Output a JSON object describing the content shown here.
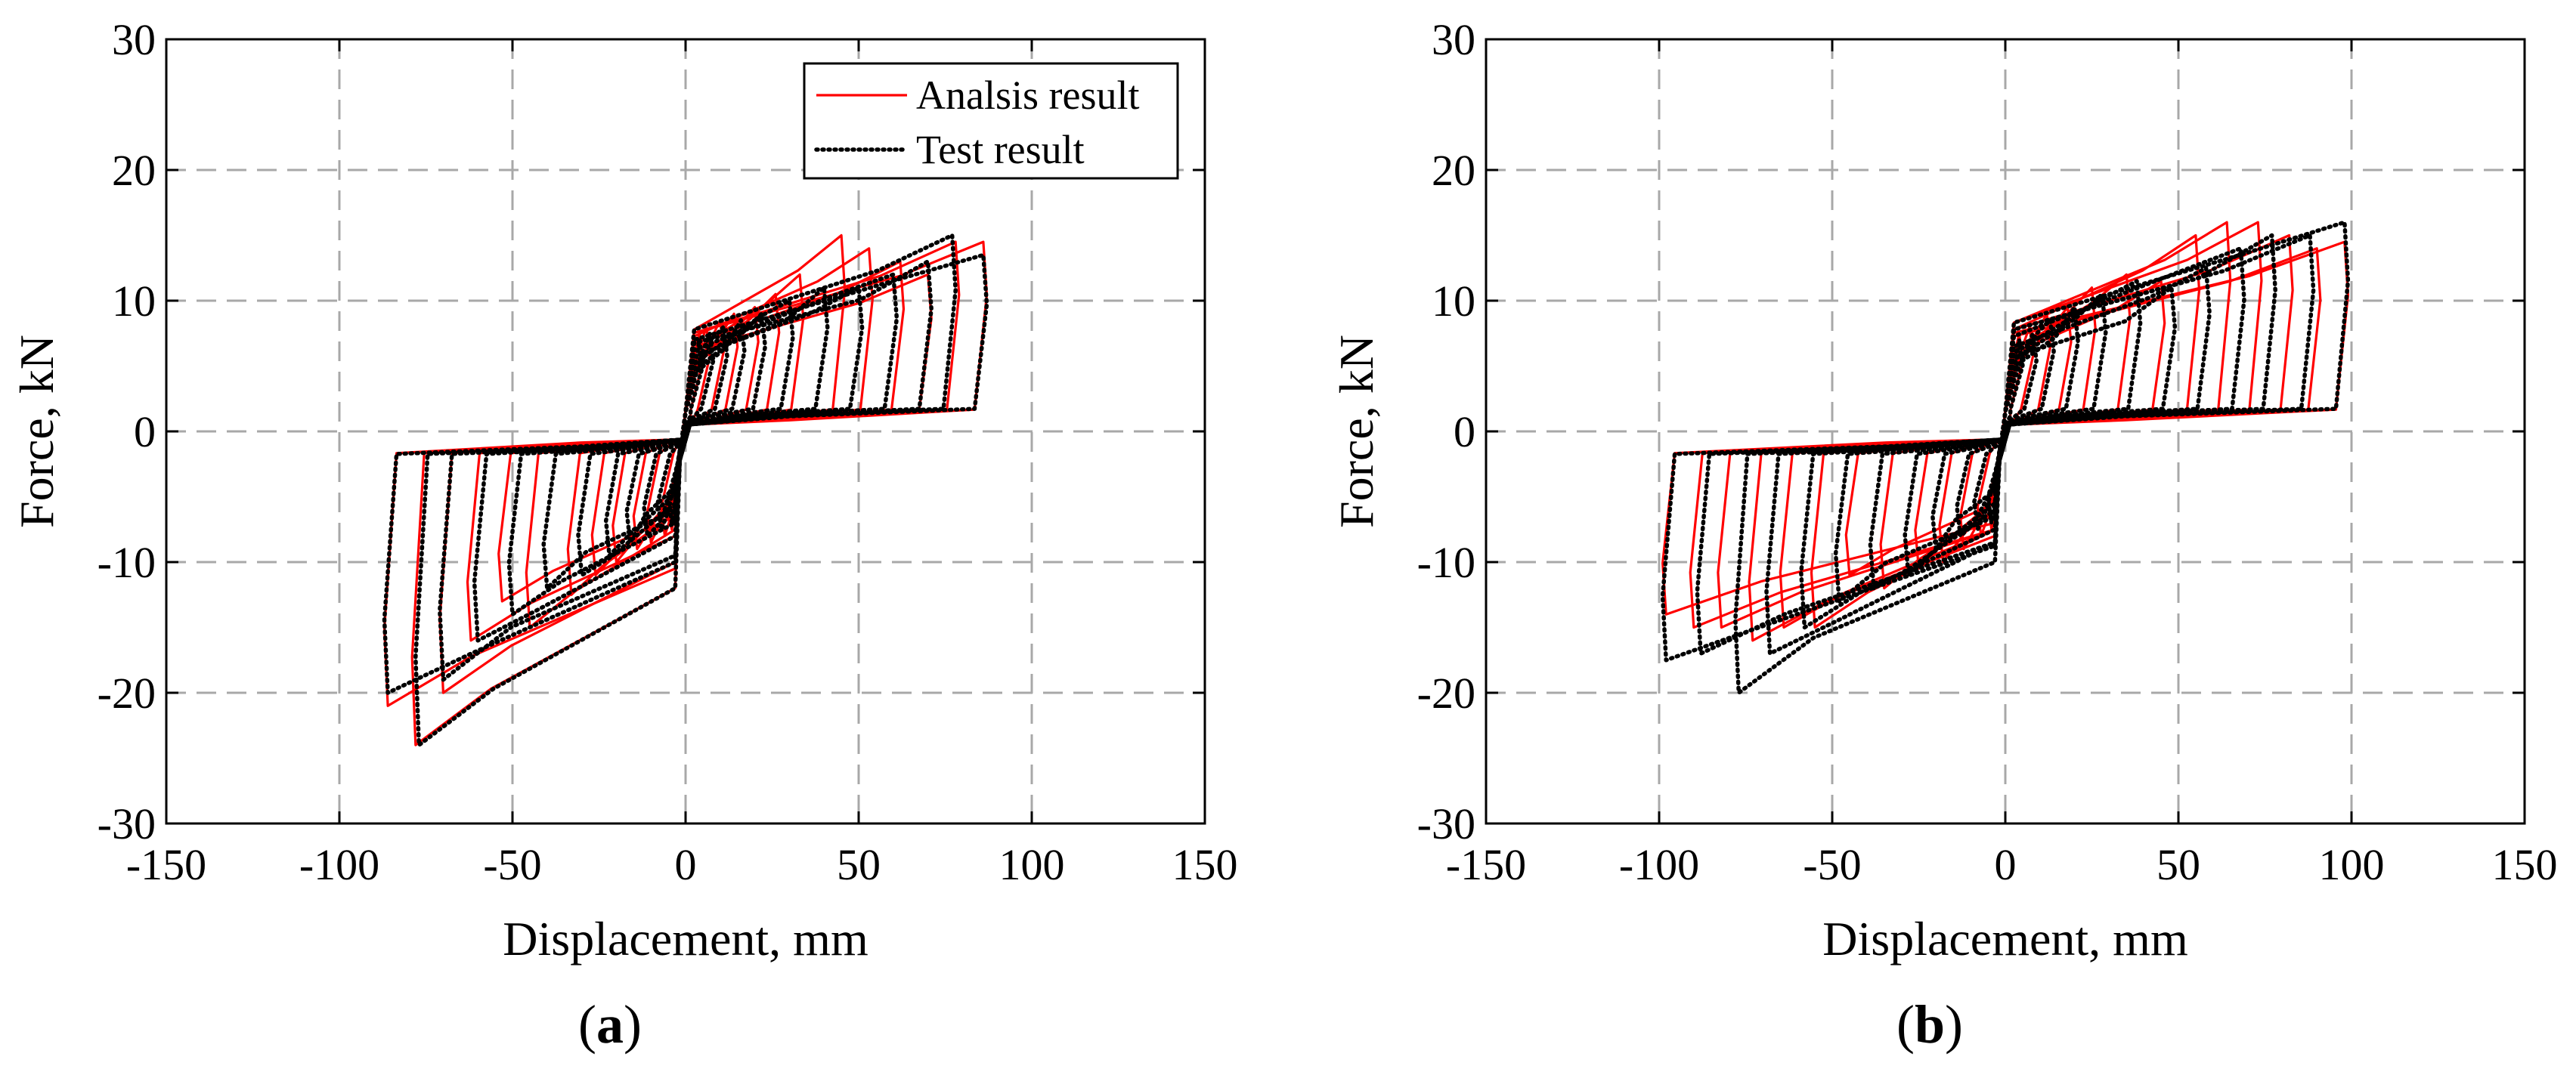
{
  "chart_data": [
    {
      "type": "line",
      "id": "a",
      "title": "",
      "caption": {
        "open": "(",
        "letter": "a",
        "close": ")"
      },
      "xlabel": "Displacement, mm",
      "ylabel": "Force, kN",
      "xlim": [
        -150,
        150
      ],
      "ylim": [
        -30,
        30
      ],
      "xticks": [
        -150,
        -100,
        -50,
        0,
        50,
        100,
        150
      ],
      "yticks": [
        -30,
        -20,
        -10,
        0,
        10,
        20,
        30
      ],
      "grid": true,
      "legend": {
        "position": "top-right",
        "entries": [
          "Analsis result",
          "Test result"
        ]
      },
      "series": [
        {
          "name": "Analsis result",
          "style": "solid",
          "color": "#ff0000",
          "cycles": [
            {
              "amp": 4,
              "posPeak": 7.5,
              "negPeak": -7.5
            },
            {
              "amp": 6,
              "posPeak": 8,
              "negPeak": -8
            },
            {
              "amp": 10,
              "posPeak": 8.5,
              "negPeak": -8.5
            },
            {
              "amp": 14,
              "posPeak": 9,
              "negPeak": -9
            },
            {
              "amp": 20,
              "posPeak": 9.5,
              "negPeak": -10
            },
            {
              "amp": 26,
              "posPeak": 10.5,
              "negPeak": -11
            },
            {
              "amp": 33,
              "posPeak": 12,
              "negPeak": -12.5
            },
            {
              "amp": 45,
              "posPeak": 15,
              "negPeak": -15
            },
            {
              "amp": 53,
              "posPeak": 14,
              "negPeak": -13
            },
            {
              "amp": 62,
              "posPeak": 13,
              "negPeak": -16
            },
            {
              "amp": 70,
              "posPeak": 12,
              "negPeak": -20
            },
            {
              "amp": 78,
              "posPeak": 14.5,
              "negPeak": -24
            },
            {
              "amp": 86,
              "posPeak": 14.5,
              "negPeak": -21
            }
          ]
        },
        {
          "name": "Test result",
          "style": "dotted",
          "color": "#000000",
          "cycles": [
            {
              "amp": 4,
              "posPeak": 7,
              "negPeak": -7
            },
            {
              "amp": 7,
              "posPeak": 7.5,
              "negPeak": -7.5
            },
            {
              "amp": 11,
              "posPeak": 8,
              "negPeak": -8
            },
            {
              "amp": 16,
              "posPeak": 8.5,
              "negPeak": -8.5
            },
            {
              "amp": 22,
              "posPeak": 9,
              "negPeak": -9.5
            },
            {
              "amp": 30,
              "posPeak": 10,
              "negPeak": -11
            },
            {
              "amp": 40,
              "posPeak": 11,
              "negPeak": -12
            },
            {
              "amp": 50,
              "posPeak": 11,
              "negPeak": -14
            },
            {
              "amp": 60,
              "posPeak": 12,
              "negPeak": -16
            },
            {
              "amp": 70,
              "posPeak": 13,
              "negPeak": -19
            },
            {
              "amp": 77,
              "posPeak": 15,
              "negPeak": -24
            },
            {
              "amp": 86,
              "posPeak": 13.5,
              "negPeak": -20
            }
          ]
        }
      ]
    },
    {
      "type": "line",
      "id": "b",
      "title": "",
      "caption": {
        "open": "(",
        "letter": "b",
        "close": ")"
      },
      "xlabel": "Displacement, mm",
      "ylabel": "Force, kN",
      "xlim": [
        -150,
        150
      ],
      "ylim": [
        -30,
        30
      ],
      "xticks": [
        -150,
        -100,
        -50,
        0,
        50,
        100,
        150
      ],
      "yticks": [
        -30,
        -20,
        -10,
        0,
        10,
        20,
        30
      ],
      "grid": true,
      "legend": null,
      "series": [
        {
          "name": "Analsis result",
          "style": "solid",
          "color": "#ff0000",
          "cycles": [
            {
              "amp": 4,
              "posPeak": 7.5,
              "negPeak": -7.5
            },
            {
              "amp": 7,
              "posPeak": 8,
              "negPeak": -8
            },
            {
              "amp": 12,
              "posPeak": 9,
              "negPeak": -9
            },
            {
              "amp": 18,
              "posPeak": 9.5,
              "negPeak": -10
            },
            {
              "amp": 25,
              "posPeak": 11,
              "negPeak": -10.5
            },
            {
              "amp": 35,
              "posPeak": 12,
              "negPeak": -12
            },
            {
              "amp": 45,
              "posPeak": 11.5,
              "negPeak": -11
            },
            {
              "amp": 55,
              "posPeak": 15,
              "negPeak": -15
            },
            {
              "amp": 64,
              "posPeak": 16,
              "negPeak": -15
            },
            {
              "amp": 73,
              "posPeak": 16,
              "negPeak": -16
            },
            {
              "amp": 82,
              "posPeak": 15,
              "negPeak": -15
            },
            {
              "amp": 90,
              "posPeak": 14,
              "negPeak": -15
            },
            {
              "amp": 98,
              "posPeak": 14.5,
              "negPeak": -14
            }
          ]
        },
        {
          "name": "Test result",
          "style": "dotted",
          "color": "#000000",
          "cycles": [
            {
              "amp": 4,
              "posPeak": 7,
              "negPeak": -7
            },
            {
              "amp": 8,
              "posPeak": 7.5,
              "negPeak": -7.5
            },
            {
              "amp": 13,
              "posPeak": 8.5,
              "negPeak": -8
            },
            {
              "amp": 20,
              "posPeak": 9.5,
              "negPeak": -9
            },
            {
              "amp": 28,
              "posPeak": 10.5,
              "negPeak": -11
            },
            {
              "amp": 38,
              "posPeak": 11.5,
              "negPeak": -12
            },
            {
              "amp": 48,
              "posPeak": 11,
              "negPeak": -13
            },
            {
              "amp": 58,
              "posPeak": 12.5,
              "negPeak": -15
            },
            {
              "amp": 68,
              "posPeak": 14,
              "negPeak": -17
            },
            {
              "amp": 77,
              "posPeak": 15,
              "negPeak": -20
            },
            {
              "amp": 88,
              "posPeak": 15,
              "negPeak": -17
            },
            {
              "amp": 98,
              "posPeak": 16,
              "negPeak": -17.5
            }
          ]
        }
      ]
    }
  ]
}
